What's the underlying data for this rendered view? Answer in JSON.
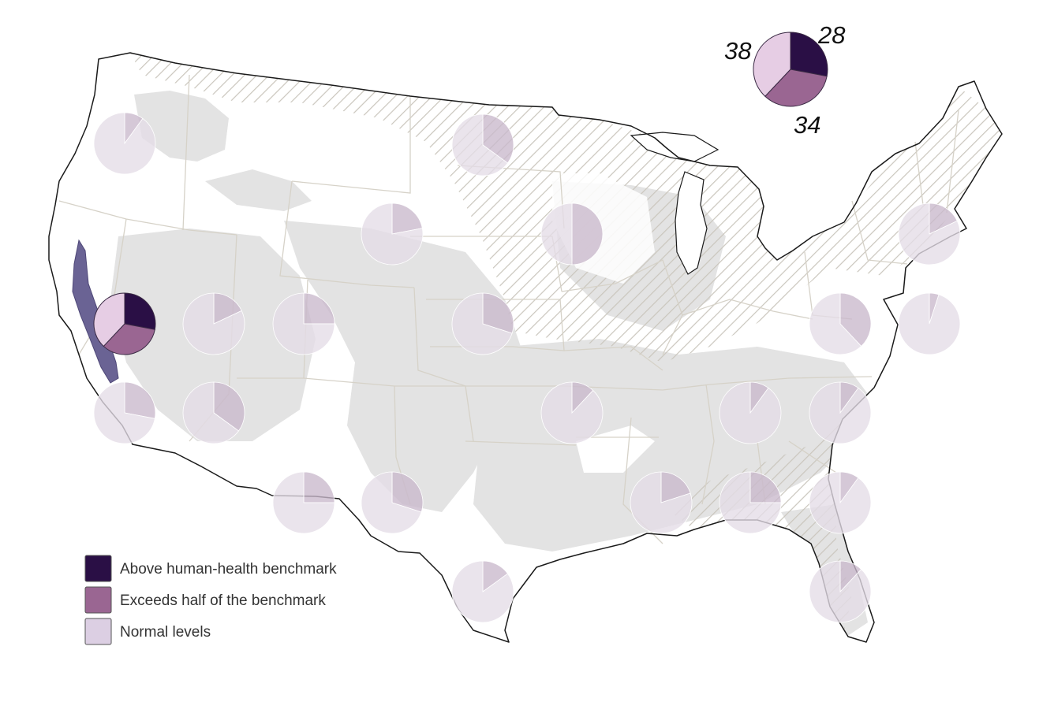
{
  "colors": {
    "above": "#2a0f45",
    "half": "#9a6692",
    "normal": "#e6cde4",
    "legend_normal": "#dccfe3",
    "faded_above": "#9e8ea8",
    "faded_half": "#c9b9cc",
    "faded_normal": "#e4dce7",
    "land": "#ffffff",
    "aquifer": "#e3e3e3",
    "hatch": "#cac6bd",
    "state_lines": "#d6d2c8",
    "outline": "#1a1a1a",
    "central_valley": "#6a6394"
  },
  "legend": {
    "items": [
      {
        "label": "Above human-health benchmark",
        "color_key": "above"
      },
      {
        "label": "Exceeds half of the benchmark",
        "color_key": "half"
      },
      {
        "label": "Normal levels",
        "color_key": "legend_normal"
      }
    ]
  },
  "highlight": {
    "labels": {
      "above": "28",
      "half": "34",
      "normal": "38"
    },
    "fractions": {
      "above": 0.28,
      "half": 0.34,
      "normal": 0.38
    }
  },
  "pies": [
    {
      "id": "california-central-valley",
      "above": 0.28,
      "half": 0.34,
      "highlighted": true
    },
    {
      "id": "columbia-plateau",
      "above": 0.0,
      "half": 0.1
    },
    {
      "id": "northern-plains-north-dakota",
      "above": 0.0,
      "half": 0.35
    },
    {
      "id": "high-plains-north",
      "above": 0.0,
      "half": 0.22
    },
    {
      "id": "glacial-aquifer-midwest",
      "above": 0.0,
      "half": 0.5
    },
    {
      "id": "new-england-northeast",
      "above": 0.0,
      "half": 0.18
    },
    {
      "id": "basin-and-range-nevada",
      "above": 0.0,
      "half": 0.18
    },
    {
      "id": "basin-and-range-utah",
      "above": 0.0,
      "half": 0.25
    },
    {
      "id": "high-plains-central",
      "above": 0.0,
      "half": 0.3
    },
    {
      "id": "piedmont-blue-ridge-north",
      "above": 0.0,
      "half": 0.38
    },
    {
      "id": "coastal-plain-new-jersey",
      "above": 0.0,
      "half": 0.05
    },
    {
      "id": "southern-california-coastal",
      "above": 0.0,
      "half": 0.28
    },
    {
      "id": "arizona-alluvial-basins",
      "above": 0.0,
      "half": 0.35
    },
    {
      "id": "ozark-plateaus",
      "above": 0.0,
      "half": 0.12
    },
    {
      "id": "valley-and-ridge-tennessee",
      "above": 0.0,
      "half": 0.1
    },
    {
      "id": "piedmont-carolinas",
      "above": 0.0,
      "half": 0.1
    },
    {
      "id": "rio-grande-basins",
      "above": 0.0,
      "half": 0.25
    },
    {
      "id": "high-plains-south",
      "above": 0.0,
      "half": 0.3
    },
    {
      "id": "mississippi-embayment",
      "above": 0.0,
      "half": 0.2
    },
    {
      "id": "coastal-plain-southeast",
      "above": 0.0,
      "half": 0.25
    },
    {
      "id": "coastal-plain-georgia",
      "above": 0.0,
      "half": 0.1
    },
    {
      "id": "gulf-coast-texas",
      "above": 0.0,
      "half": 0.15
    },
    {
      "id": "floridan-aquifer",
      "above": 0.0,
      "half": 0.12
    }
  ]
}
